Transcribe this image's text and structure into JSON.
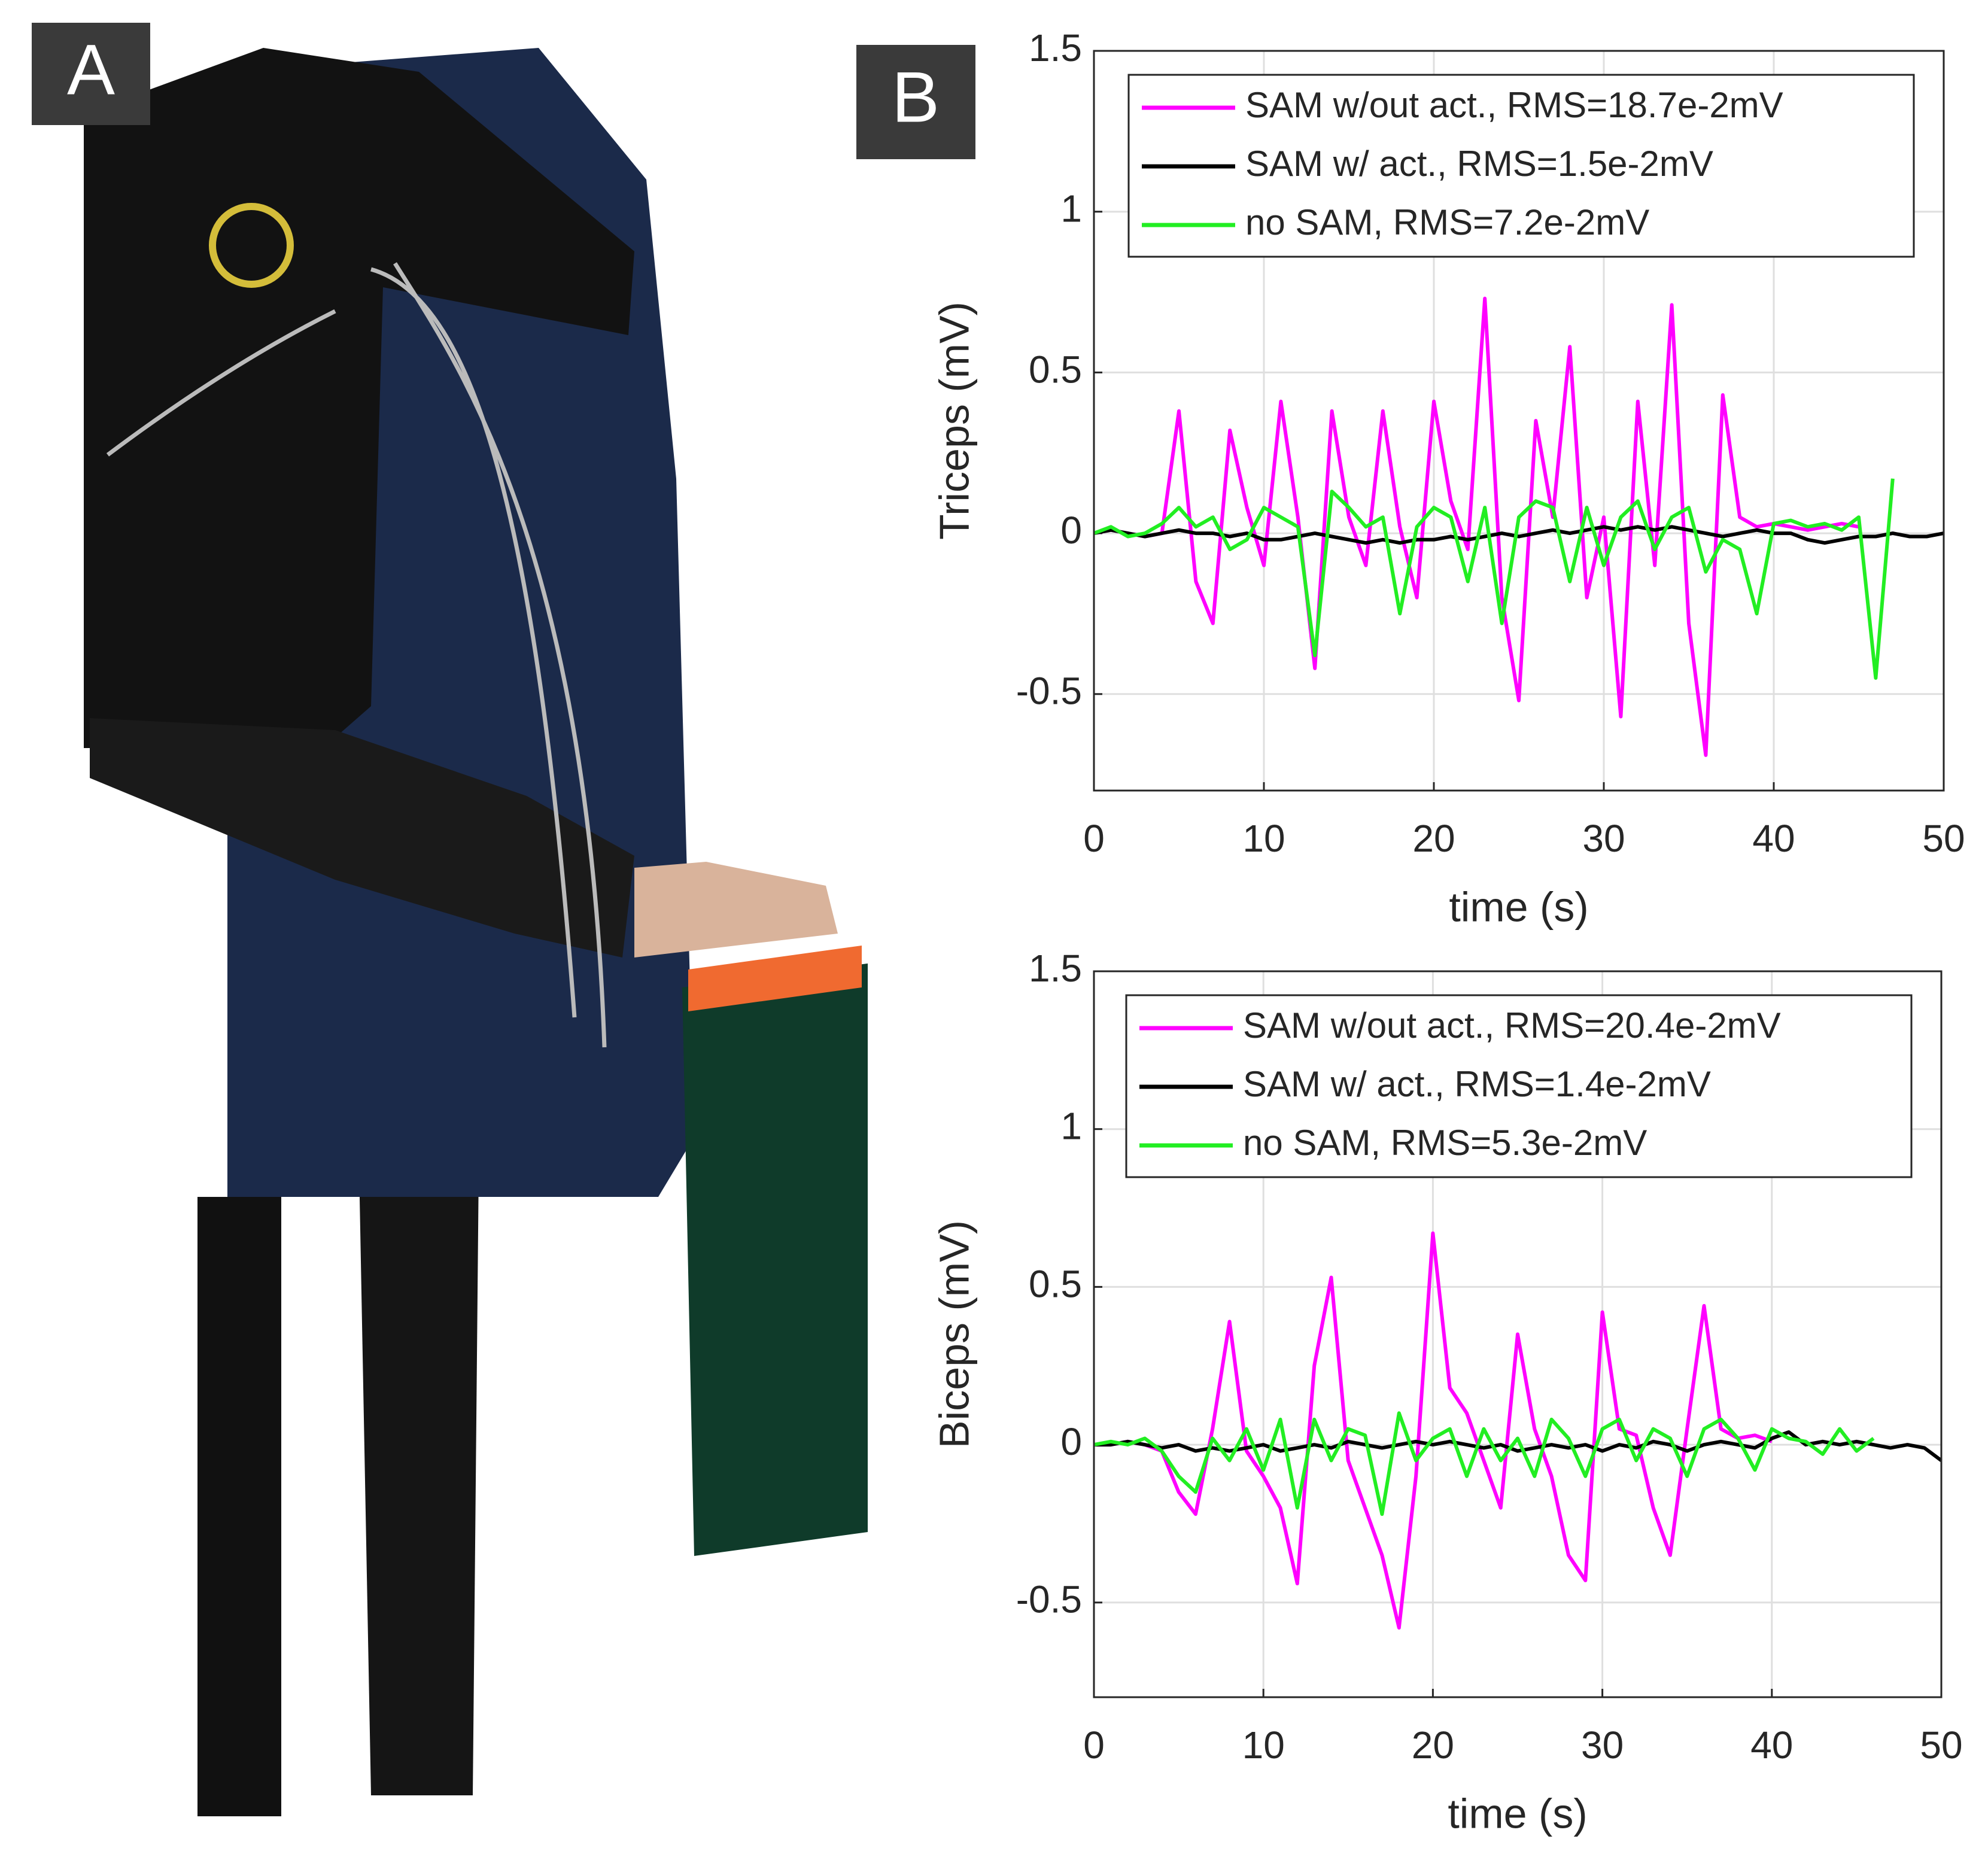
{
  "panel_labels": [
    "A",
    "B"
  ],
  "chart_data": [
    {
      "type": "line",
      "ylabel": "Triceps (mV)",
      "xlabel": "time (s)",
      "x": [
        0,
        1,
        2,
        3,
        4,
        5,
        6,
        7,
        8,
        9,
        10,
        11,
        12,
        13,
        14,
        15,
        16,
        17,
        18,
        19,
        20,
        21,
        22,
        23,
        24,
        25,
        26,
        27,
        28,
        29,
        30,
        31,
        32,
        33,
        34,
        35,
        36,
        37,
        38,
        39,
        40,
        41,
        42,
        43,
        44,
        45,
        46,
        47,
        48,
        49,
        50
      ],
      "series": [
        {
          "name": "SAM w/out act., RMS=18.7e-2mV",
          "color": "#ff00ff",
          "values": [
            0,
            0.01,
            0,
            -0.01,
            0,
            0.38,
            -0.15,
            -0.28,
            0.32,
            0.08,
            -0.1,
            0.41,
            0.05,
            -0.42,
            0.38,
            0.05,
            -0.1,
            0.38,
            0.02,
            -0.2,
            0.41,
            0.1,
            -0.05,
            0.73,
            -0.2,
            -0.52,
            0.35,
            0.05,
            0.58,
            -0.2,
            0.05,
            -0.57,
            0.41,
            -0.1,
            0.71,
            -0.28,
            -0.69,
            0.43,
            0.05,
            0.02,
            0.03,
            0.02,
            0.01,
            0.02,
            0.03,
            0.02,
            null,
            null,
            null,
            null,
            null
          ]
        },
        {
          "name": "SAM w/ act., RMS=1.5e-2mV",
          "color": "#000000",
          "values": [
            0,
            0.01,
            0,
            -0.01,
            0,
            0.01,
            0,
            0,
            -0.01,
            0,
            -0.02,
            -0.02,
            -0.01,
            0,
            -0.01,
            -0.02,
            -0.03,
            -0.02,
            -0.03,
            -0.02,
            -0.02,
            -0.01,
            -0.02,
            -0.01,
            0,
            -0.01,
            0,
            0.01,
            0,
            0.01,
            0.02,
            0.01,
            0.02,
            0.01,
            0.02,
            0.01,
            0,
            -0.01,
            0,
            0.01,
            0,
            0,
            -0.02,
            -0.03,
            -0.02,
            -0.01,
            -0.01,
            0,
            -0.01,
            -0.01,
            0
          ]
        },
        {
          "name": "no SAM, RMS=7.2e-2mV",
          "color": "#22ee22",
          "values": [
            0,
            0.02,
            -0.01,
            0,
            0.03,
            0.08,
            0.02,
            0.05,
            -0.05,
            -0.02,
            0.08,
            0.05,
            0.02,
            -0.38,
            0.13,
            0.08,
            0.02,
            0.05,
            -0.25,
            0.02,
            0.08,
            0.05,
            -0.15,
            0.08,
            -0.28,
            0.05,
            0.1,
            0.08,
            -0.15,
            0.08,
            -0.1,
            0.05,
            0.1,
            -0.05,
            0.05,
            0.08,
            -0.12,
            -0.02,
            -0.05,
            -0.25,
            0.03,
            0.04,
            0.02,
            0.03,
            0.01,
            0.05,
            -0.45,
            0.17,
            null,
            null,
            null
          ]
        }
      ],
      "xlim": [
        0,
        50
      ],
      "xticks": [
        0,
        10,
        20,
        30,
        40,
        50
      ],
      "ylim": [
        -0.8,
        1.5
      ],
      "yticks": [
        -0.5,
        0,
        0.5,
        1,
        1.5
      ],
      "grid": true,
      "legend": "upper right"
    },
    {
      "type": "line",
      "ylabel": "Biceps (mV)",
      "xlabel": "time (s)",
      "x": [
        0,
        1,
        2,
        3,
        4,
        5,
        6,
        7,
        8,
        9,
        10,
        11,
        12,
        13,
        14,
        15,
        16,
        17,
        18,
        19,
        20,
        21,
        22,
        23,
        24,
        25,
        26,
        27,
        28,
        29,
        30,
        31,
        32,
        33,
        34,
        35,
        36,
        37,
        38,
        39,
        40,
        41,
        42,
        43,
        44,
        45,
        46,
        47,
        48,
        49,
        50
      ],
      "series": [
        {
          "name": "SAM w/out act., RMS=20.4e-2mV",
          "color": "#ff00ff",
          "values": [
            0,
            0,
            0.01,
            0,
            -0.02,
            -0.15,
            -0.22,
            0.05,
            0.39,
            -0.02,
            -0.1,
            -0.2,
            -0.44,
            0.25,
            0.53,
            -0.05,
            -0.2,
            -0.35,
            -0.58,
            -0.1,
            0.67,
            0.18,
            0.1,
            -0.05,
            -0.2,
            0.35,
            0.05,
            -0.1,
            -0.35,
            -0.43,
            0.42,
            0.05,
            0.03,
            -0.2,
            -0.35,
            0.05,
            0.44,
            0.05,
            0.02,
            0.03,
            0.01,
            null,
            null,
            null,
            null,
            null,
            null,
            null,
            null,
            null,
            null
          ]
        },
        {
          "name": "SAM w/ act., RMS=1.4e-2mV",
          "color": "#000000",
          "values": [
            0,
            0,
            0.01,
            0,
            -0.01,
            0,
            -0.02,
            -0.01,
            -0.02,
            -0.01,
            0,
            -0.02,
            -0.01,
            0,
            -0.01,
            0.01,
            0,
            -0.01,
            0,
            0.01,
            0,
            0.01,
            0,
            -0.01,
            0,
            -0.02,
            -0.01,
            0,
            -0.01,
            0,
            -0.02,
            0,
            -0.01,
            0.01,
            0,
            -0.02,
            0,
            0.01,
            0,
            -0.01,
            0.02,
            0.04,
            0,
            0.01,
            0,
            0.01,
            0,
            -0.01,
            0,
            -0.01,
            -0.05
          ]
        },
        {
          "name": "no SAM, RMS=5.3e-2mV",
          "color": "#22ee22",
          "values": [
            0,
            0.01,
            0,
            0.02,
            -0.02,
            -0.1,
            -0.15,
            0.02,
            -0.05,
            0.05,
            -0.08,
            0.08,
            -0.2,
            0.08,
            -0.05,
            0.05,
            0.03,
            -0.22,
            0.1,
            -0.05,
            0.02,
            0.05,
            -0.1,
            0.05,
            -0.05,
            0.02,
            -0.1,
            0.08,
            0.02,
            -0.1,
            0.05,
            0.08,
            -0.05,
            0.05,
            0.02,
            -0.1,
            0.05,
            0.08,
            0.02,
            -0.08,
            0.05,
            0.02,
            0.01,
            -0.03,
            0.05,
            -0.02,
            0.02,
            null,
            null,
            null,
            null
          ]
        }
      ],
      "xlim": [
        0,
        50
      ],
      "xticks": [
        0,
        10,
        20,
        30,
        40,
        50
      ],
      "ylim": [
        -0.8,
        1.5
      ],
      "yticks": [
        -0.5,
        0,
        0.5,
        1,
        1.5
      ],
      "grid": true,
      "legend": "upper right"
    }
  ]
}
